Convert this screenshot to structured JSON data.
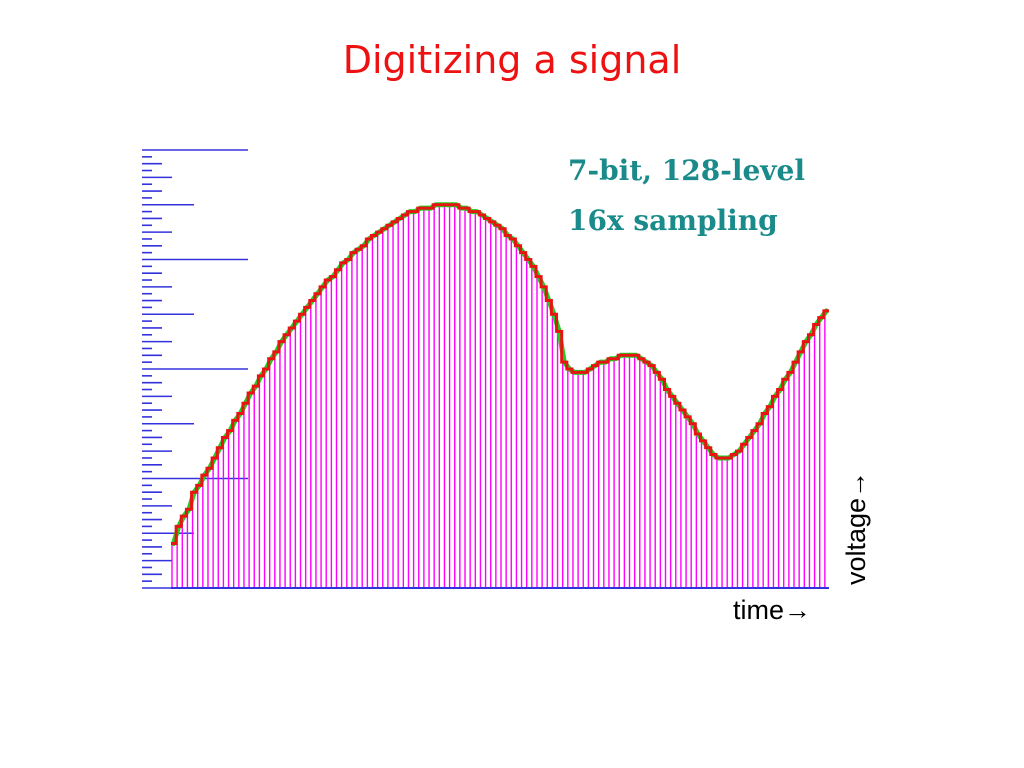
{
  "slide": {
    "title": "Digitizing a signal",
    "title_color": "#ee1111"
  },
  "chart_data": {
    "type": "bar",
    "annotation": [
      "7-bit, 128-level",
      "16x sampling"
    ],
    "xlabel": "time→",
    "ylabel": "voltage→",
    "quantization_levels": 128,
    "ylim": [
      0,
      128
    ],
    "sample_count": 128,
    "colors": {
      "samples": "#ff00ff",
      "staircase": "#e81414",
      "analog": "#22cc22",
      "axis": "#3333dd",
      "annotation": "#1a8a8a"
    },
    "values": [
      13,
      18,
      21,
      23,
      28,
      30,
      33,
      35,
      38,
      41,
      44,
      46,
      49,
      51,
      54,
      57,
      59,
      62,
      64,
      67,
      69,
      72,
      74,
      76,
      78,
      80,
      82,
      84,
      86,
      88,
      90,
      91,
      93,
      95,
      96,
      98,
      99,
      100,
      102,
      103,
      104,
      105,
      106,
      107,
      108,
      109,
      110,
      110,
      111,
      111,
      111,
      112,
      112,
      112,
      112,
      112,
      111,
      111,
      110,
      110,
      109,
      108,
      107,
      106,
      105,
      103,
      102,
      100,
      98,
      96,
      94,
      91,
      88,
      84,
      80,
      75,
      66,
      64,
      63,
      63,
      63,
      64,
      65,
      66,
      66,
      67,
      67,
      68,
      68,
      68,
      68,
      67,
      66,
      65,
      63,
      61,
      58,
      56,
      54,
      52,
      50,
      48,
      45,
      43,
      41,
      39,
      38,
      38,
      38,
      39,
      40,
      42,
      44,
      46,
      48,
      51,
      53,
      56,
      58,
      61,
      63,
      66,
      69,
      72,
      74,
      77,
      79,
      81
    ]
  }
}
